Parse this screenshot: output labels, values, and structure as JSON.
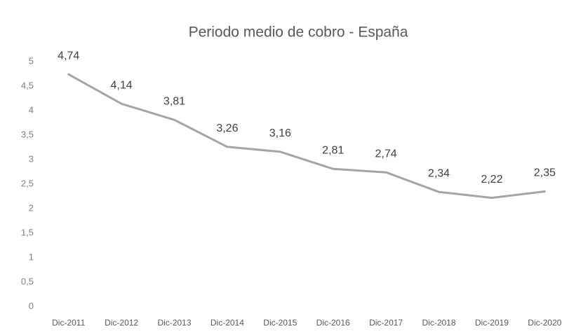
{
  "chart_data": {
    "type": "line",
    "title": "Periodo medio de cobro - España",
    "categories": [
      "Dic-2011",
      "Dic-2012",
      "Dic-2013",
      "Dic-2014",
      "Dic-2015",
      "Dic-2016",
      "Dic-2017",
      "Dic-2018",
      "Dic-2019",
      "Dic-2020"
    ],
    "values": [
      4.74,
      4.14,
      3.81,
      3.26,
      3.16,
      2.81,
      2.74,
      2.34,
      2.22,
      2.35
    ],
    "value_labels": [
      "4,74",
      "4,14",
      "3,81",
      "3,26",
      "3,16",
      "2,81",
      "2,74",
      "2,34",
      "2,22",
      "2,35"
    ],
    "color": "#a5a5a5",
    "ylim": [
      0,
      5
    ],
    "yticks": [
      0,
      {
        "value": 0.5,
        "label": "0,5"
      },
      1,
      {
        "value": 1.5,
        "label": "1,5"
      },
      2,
      {
        "value": 2.5,
        "label": "2,5"
      },
      3,
      {
        "value": 3.5,
        "label": "3,5"
      },
      4,
      {
        "value": 4.5,
        "label": "4,5"
      },
      5
    ],
    "grid": false
  }
}
